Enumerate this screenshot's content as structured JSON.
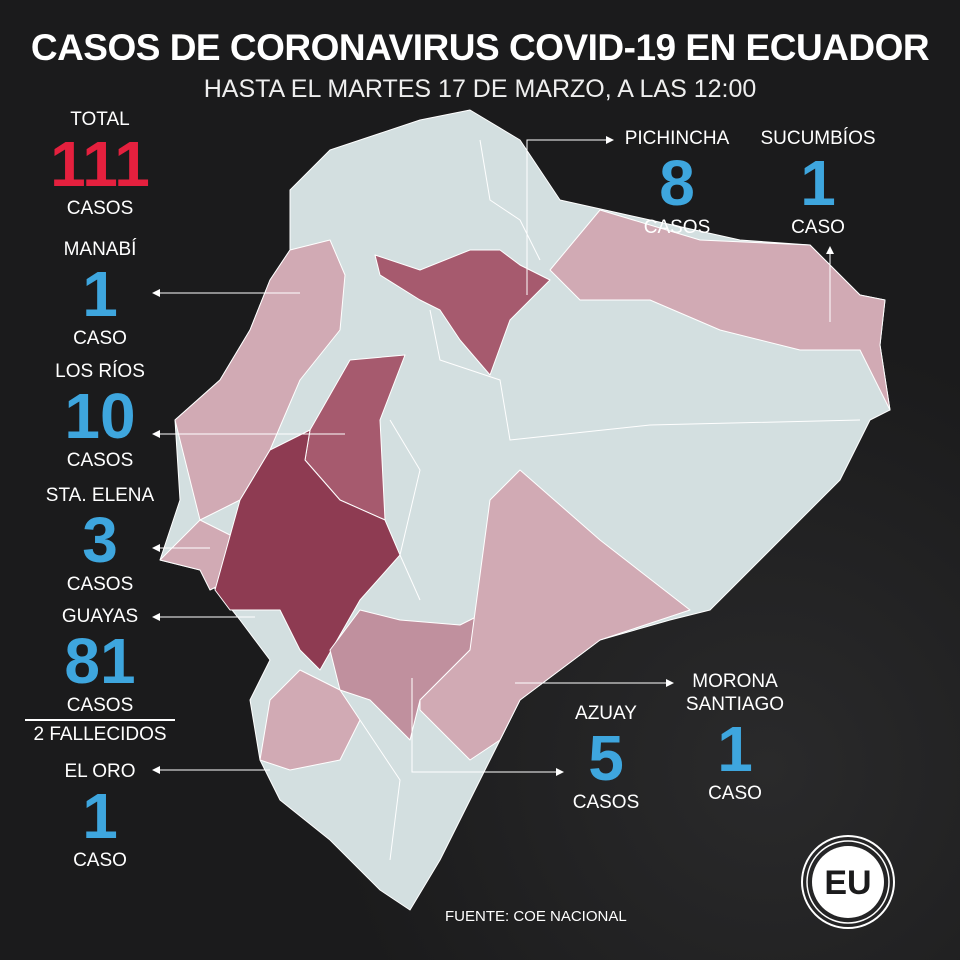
{
  "header": {
    "title": "CASOS DE CORONAVIRUS COVID-19 EN ECUADOR",
    "subtitle": "HASTA EL MARTES 17 DE MARZO, A LAS 12:00"
  },
  "total": {
    "label": "TOTAL",
    "value": "111",
    "unit": "CASOS",
    "color": "#e5203e"
  },
  "provinces": [
    {
      "name": "MANABÍ",
      "value": "1",
      "unit": "CASO"
    },
    {
      "name": "LOS RÍOS",
      "value": "10",
      "unit": "CASOS"
    },
    {
      "name": "STA. ELENA",
      "value": "3",
      "unit": "CASOS"
    },
    {
      "name": "GUAYAS",
      "value": "81",
      "unit": "CASOS",
      "extra": "2 FALLECIDOS"
    },
    {
      "name": "EL ORO",
      "value": "1",
      "unit": "CASO"
    },
    {
      "name": "PICHINCHA",
      "value": "8",
      "unit": "CASOS"
    },
    {
      "name": "SUCUMBÍOS",
      "value": "1",
      "unit": "CASO"
    },
    {
      "name": "AZUAY",
      "value": "5",
      "unit": "CASOS"
    },
    {
      "name": "MORONA SANTIAGO",
      "value": "1",
      "unit": "CASO"
    }
  ],
  "colors": {
    "number": "#3ea6de",
    "no_cases": "#d3dfe0",
    "low": "#d1aab4",
    "mid": "#c0909e",
    "high": "#a65a6e",
    "highest": "#8e3b52"
  },
  "source": "FUENTE: COE NACIONAL",
  "logo": "EU"
}
